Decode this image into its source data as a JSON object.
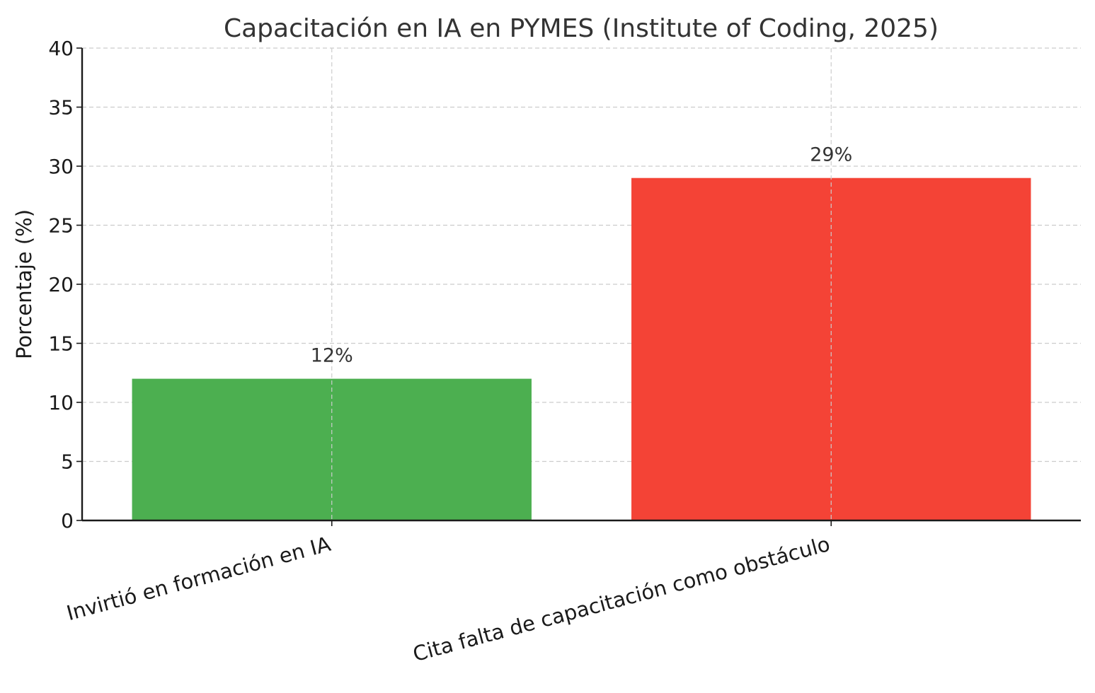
{
  "chart_data": {
    "type": "bar",
    "title": "Capacitación en IA en PYMES (Institute of Coding, 2025)",
    "xlabel": "",
    "ylabel": "Porcentaje (%)",
    "ylim": [
      0,
      40
    ],
    "yticks": [
      0,
      5,
      10,
      15,
      20,
      25,
      30,
      35,
      40
    ],
    "grid": true,
    "categories": [
      "Invirtió en formación en IA",
      "Cita falta de capacitación como obstáculo"
    ],
    "values": [
      12,
      29
    ],
    "data_labels": [
      "12%",
      "29%"
    ],
    "colors": [
      "#4caf50",
      "#f44336"
    ]
  }
}
